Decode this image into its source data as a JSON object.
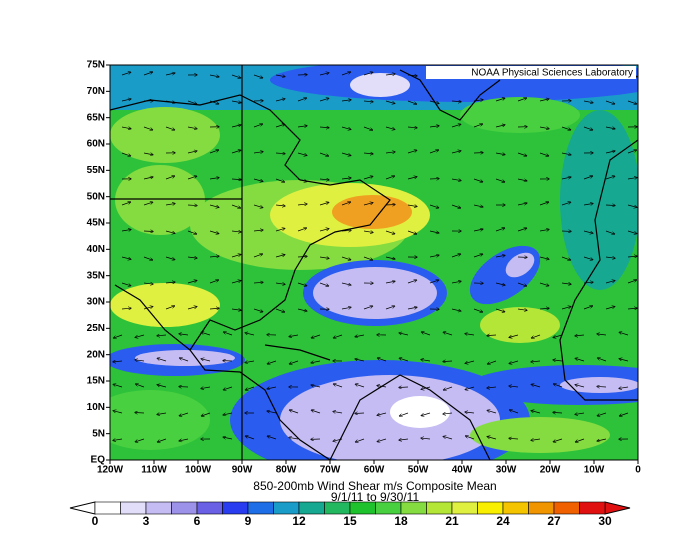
{
  "title": "850-200mb Wind Shear m/s Composite Mean",
  "subtitle": "9/1/11  to 9/30/11",
  "credit": "NOAA Physical Sciences Laboratory",
  "latitude_labels": [
    "75N",
    "70N",
    "65N",
    "60N",
    "55N",
    "50N",
    "45N",
    "40N",
    "35N",
    "30N",
    "25N",
    "20N",
    "15N",
    "10N",
    "5N",
    "EQ"
  ],
  "longitude_labels": [
    "120W",
    "110W",
    "100W",
    "90W",
    "80W",
    "70W",
    "60W",
    "50W",
    "40W",
    "30W",
    "20W",
    "10W",
    "0"
  ],
  "colorbar": {
    "labels": [
      0,
      3,
      6,
      9,
      12,
      15,
      18,
      21,
      24,
      27,
      30
    ],
    "colors": [
      "#ffffff",
      "#e2ddf8",
      "#c4bcf2",
      "#9c92ea",
      "#6a60e6",
      "#2a3cf0",
      "#1e6ee8",
      "#1a9cc8",
      "#16a890",
      "#22b860",
      "#1ec22c",
      "#48d040",
      "#84dc40",
      "#b4e638",
      "#e0f040",
      "#f8f000",
      "#f4c400",
      "#f09400",
      "#f06000",
      "#e01010"
    ]
  }
}
